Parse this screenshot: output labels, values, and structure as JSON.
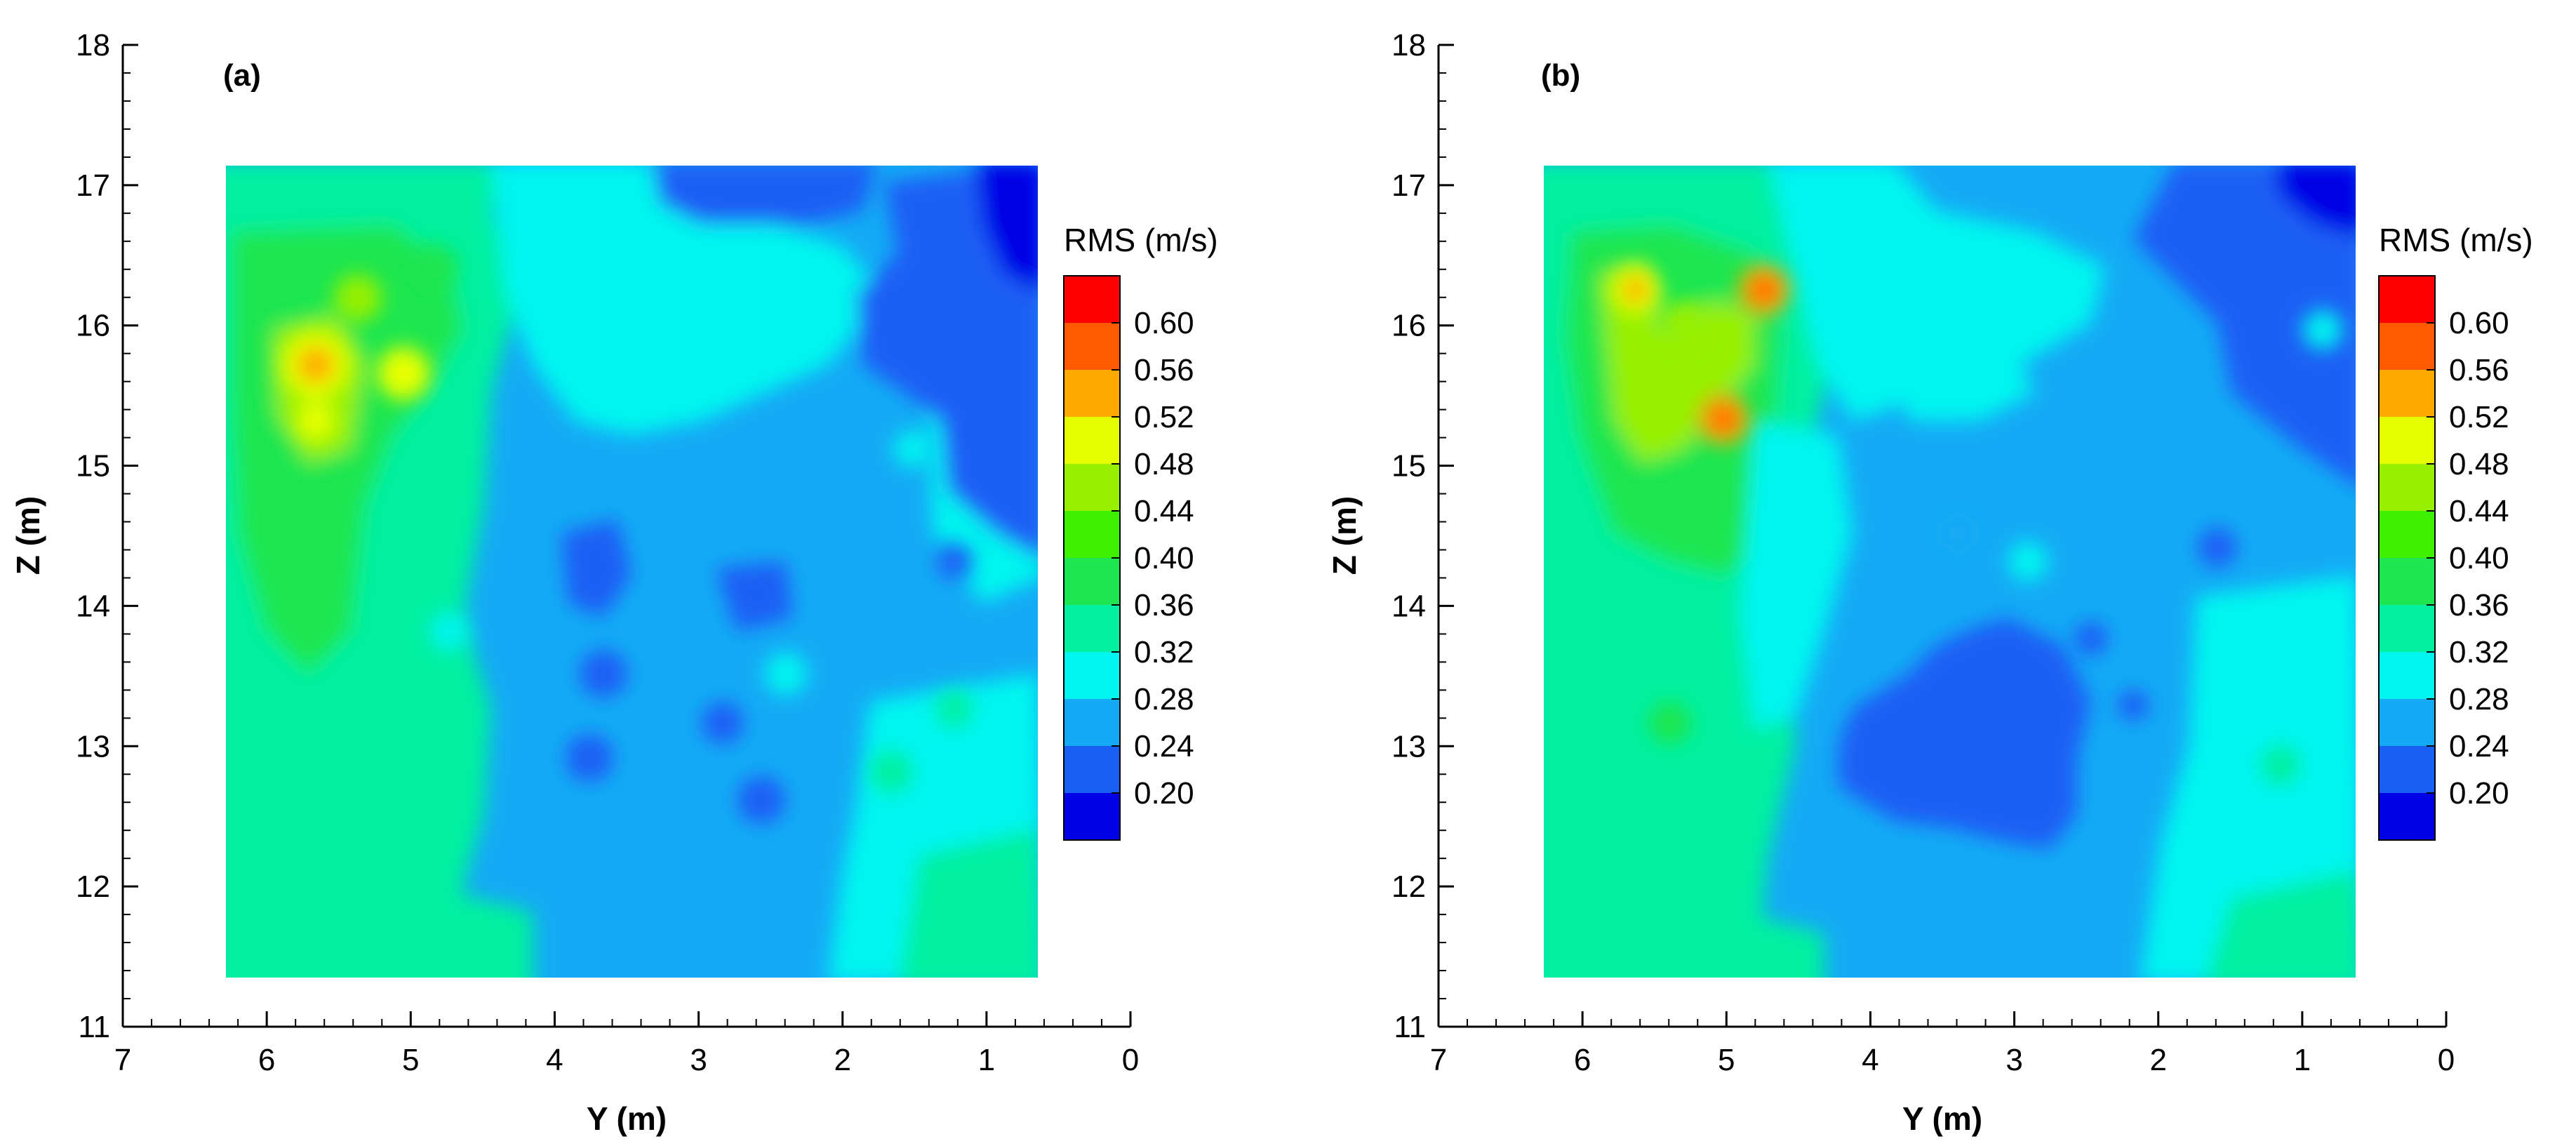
{
  "chart_data": [
    {
      "type": "heatmap",
      "panel_label": "(a)",
      "xlabel": "Y (m)",
      "ylabel": "Z (m)",
      "xlim": [
        7,
        0
      ],
      "ylim": [
        11,
        18
      ],
      "xticks": [
        "7",
        "6",
        "5",
        "4",
        "3",
        "2",
        "1",
        "0"
      ],
      "yticks": [
        "11",
        "12",
        "13",
        "14",
        "15",
        "16",
        "17",
        "18"
      ],
      "data_extent": {
        "x": [
          6.3,
          0.65
        ],
        "y": [
          11.35,
          17.15
        ]
      },
      "colorbar": {
        "title": "RMS (m/s)",
        "levels": [
          "0.20",
          "0.24",
          "0.28",
          "0.32",
          "0.36",
          "0.40",
          "0.44",
          "0.48",
          "0.52",
          "0.56",
          "0.60"
        ]
      },
      "hotspots": [
        {
          "y_m": 5.7,
          "z_m": 15.6,
          "rms": 0.56
        },
        {
          "y_m": 5.05,
          "z_m": 15.6,
          "rms": 0.52
        },
        {
          "y_m": 5.35,
          "z_m": 16.2,
          "rms": 0.48
        },
        {
          "y_m": 5.7,
          "z_m": 15.3,
          "rms": 0.48
        }
      ],
      "lows": [
        {
          "y_m": 0.8,
          "z_m": 16.7,
          "rms": 0.2
        },
        {
          "y_m": 3.8,
          "z_m": 14.2,
          "rms": 0.24
        },
        {
          "y_m": 3.7,
          "z_m": 13.5,
          "rms": 0.24
        }
      ]
    },
    {
      "type": "heatmap",
      "panel_label": "(b)",
      "xlabel": "Y (m)",
      "ylabel": "Z (m)",
      "xlim": [
        7,
        0
      ],
      "ylim": [
        11,
        18
      ],
      "xticks": [
        "7",
        "6",
        "5",
        "4",
        "3",
        "2",
        "1",
        "0"
      ],
      "yticks": [
        "11",
        "12",
        "13",
        "14",
        "15",
        "16",
        "17",
        "18"
      ],
      "data_extent": {
        "x": [
          6.3,
          0.65
        ],
        "y": [
          11.35,
          17.15
        ]
      },
      "colorbar": {
        "title": "RMS (m/s)",
        "levels": [
          "0.20",
          "0.24",
          "0.28",
          "0.32",
          "0.36",
          "0.40",
          "0.44",
          "0.48",
          "0.52",
          "0.56",
          "0.60"
        ]
      },
      "hotspots": [
        {
          "y_m": 5.65,
          "z_m": 16.2,
          "rms": 0.52
        },
        {
          "y_m": 4.8,
          "z_m": 16.2,
          "rms": 0.56
        },
        {
          "y_m": 5.35,
          "z_m": 15.3,
          "rms": 0.56
        }
      ],
      "lows": [
        {
          "y_m": 3.2,
          "z_m": 13.2,
          "rms": 0.24
        },
        {
          "y_m": 0.8,
          "z_m": 16.8,
          "rms": 0.2
        }
      ]
    }
  ],
  "colors": {
    "scale": [
      "#0000e6",
      "#1a5ff5",
      "#14aaf5",
      "#00f5f0",
      "#00f0a0",
      "#1ee650",
      "#3cf000",
      "#96f000",
      "#e6ff00",
      "#ffaa00",
      "#ff5a00",
      "#ff0000"
    ]
  }
}
